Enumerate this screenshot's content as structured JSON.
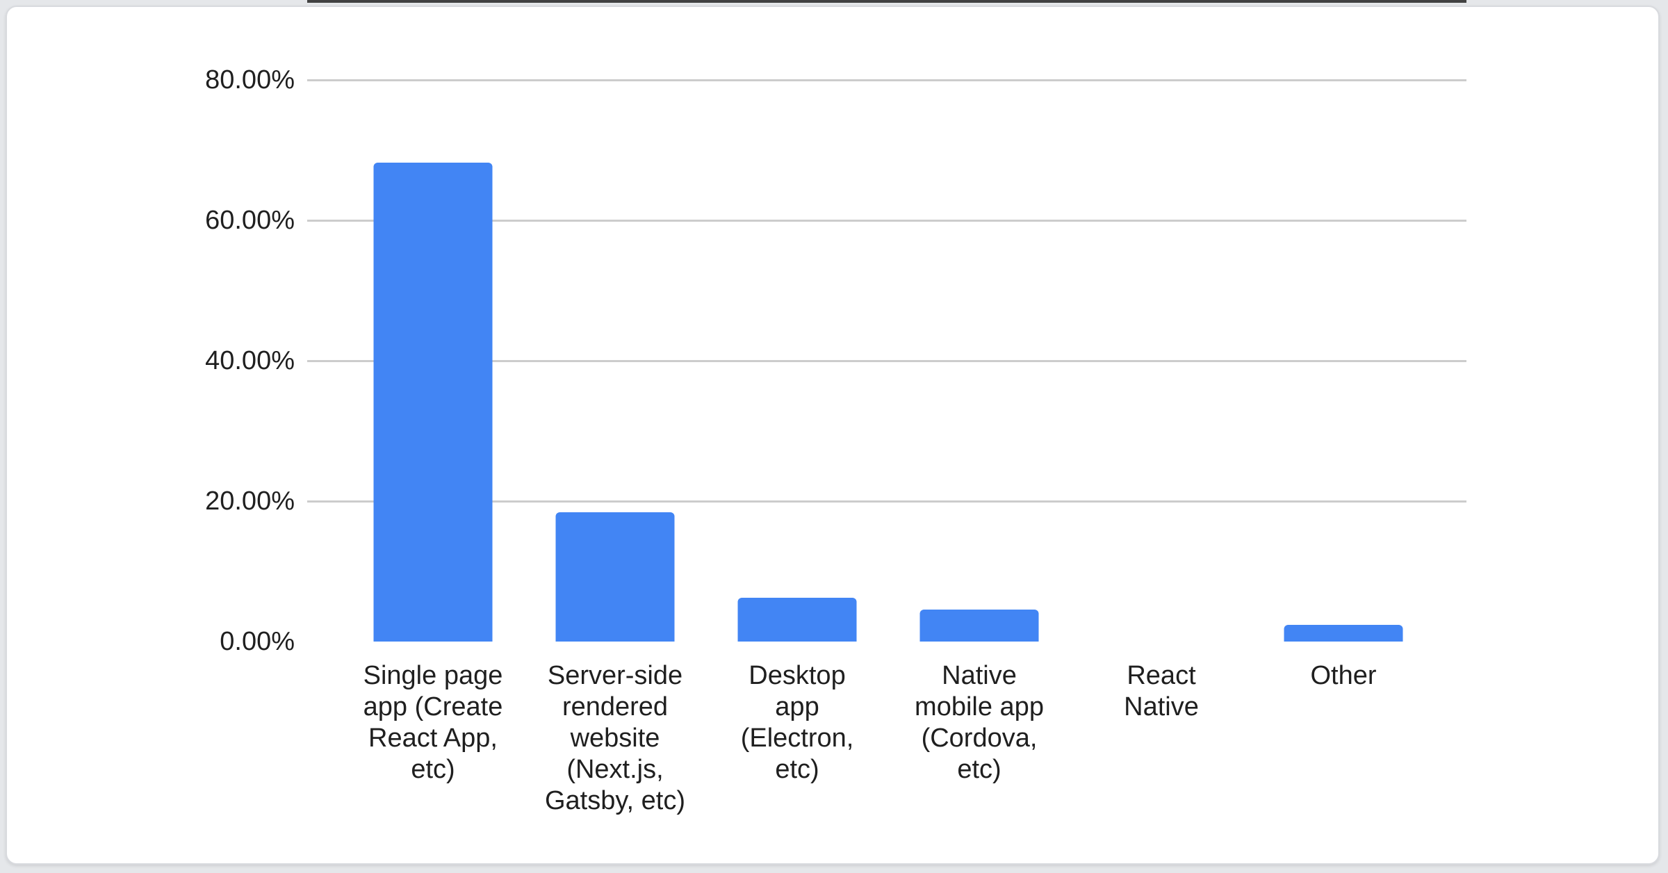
{
  "page": {
    "background_color": "#e5e7ea"
  },
  "card": {
    "background_color": "#ffffff",
    "border_color": "#d8dade"
  },
  "chart_data": {
    "type": "bar",
    "title": "",
    "categories": [
      "Single page app (Create React App, etc)",
      "Server-side rendered website (Next.js, Gatsby, etc)",
      "Desktop app (Electron, etc)",
      "Native mobile app (Cordova, etc)",
      "React Native",
      "Other"
    ],
    "category_lines": [
      "Single page\napp (Create\nReact App,\netc)",
      "Server-side\nrendered\nwebsite\n(Next.js,\nGatsby, etc)",
      "Desktop\napp\n(Electron,\netc)",
      "Native\nmobile app\n(Cordova,\netc)",
      "React\nNative",
      "Other"
    ],
    "values": [
      68.2,
      18.4,
      6.2,
      4.6,
      0,
      2.4
    ],
    "unit": "%",
    "xlabel": "",
    "ylabel": "",
    "ylim": [
      0,
      80
    ],
    "y_ticks": [
      {
        "value": 80,
        "label": "80.00%"
      },
      {
        "value": 60,
        "label": "60.00%"
      },
      {
        "value": 40,
        "label": "40.00%"
      },
      {
        "value": 20,
        "label": "20.00%"
      },
      {
        "value": 0,
        "label": "0.00%"
      }
    ],
    "grid": true,
    "legend_position": "none",
    "bar_color": "#4285f4",
    "gridline_color": "#cccccc",
    "axis_line_color": "#424242",
    "label_color": "#1f1f1f"
  }
}
